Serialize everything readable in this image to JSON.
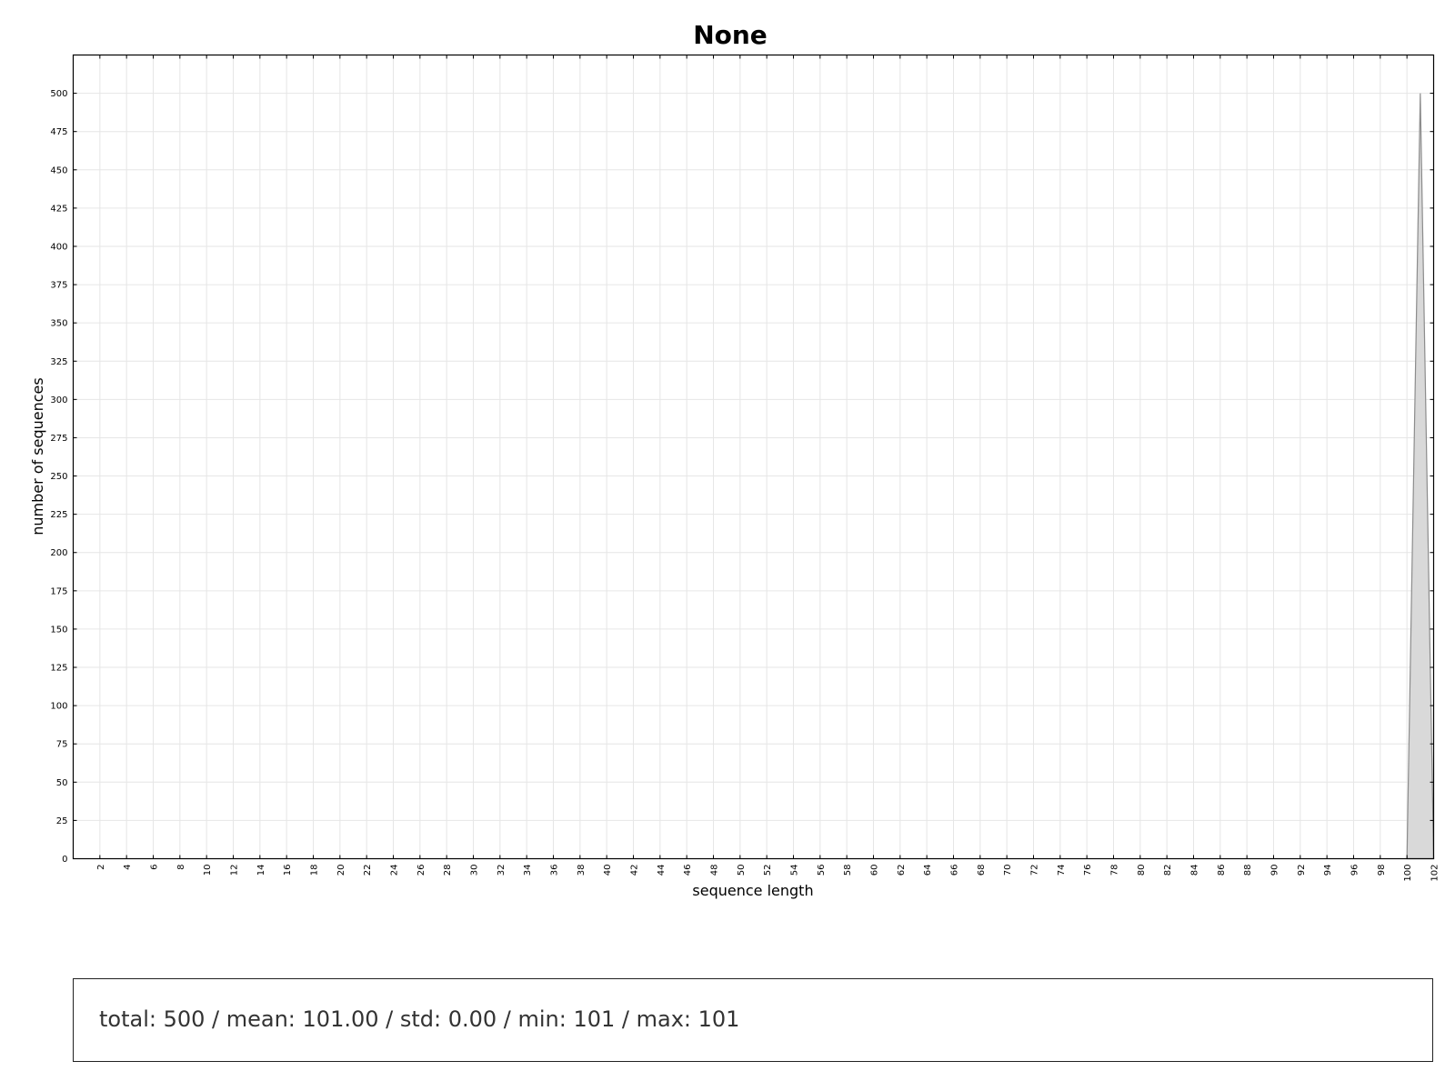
{
  "chart_data": {
    "type": "area",
    "title": "None",
    "xlabel": "sequence length",
    "ylabel": "number of sequences",
    "xlim": [
      0,
      102
    ],
    "ylim": [
      0,
      525
    ],
    "xticks": [
      2,
      4,
      6,
      8,
      10,
      12,
      14,
      16,
      18,
      20,
      22,
      24,
      26,
      28,
      30,
      32,
      34,
      36,
      38,
      40,
      42,
      44,
      46,
      48,
      50,
      52,
      54,
      56,
      58,
      60,
      62,
      64,
      66,
      68,
      70,
      72,
      74,
      76,
      78,
      80,
      82,
      84,
      86,
      88,
      90,
      92,
      94,
      96,
      98,
      100,
      102
    ],
    "yticks": [
      0,
      25,
      50,
      75,
      100,
      125,
      150,
      175,
      200,
      225,
      250,
      275,
      300,
      325,
      350,
      375,
      400,
      425,
      450,
      475,
      500
    ],
    "grid": true,
    "series": [
      {
        "x": [
          100,
          101,
          102
        ],
        "y": [
          0,
          500,
          0
        ]
      }
    ],
    "colors": {
      "fill": "#d9d9d9",
      "line": "#8c8c8c",
      "grid": "#e6e6e6",
      "axis": "#000000"
    }
  },
  "stats": {
    "text": "total: 500 / mean: 101.00 / std: 0.00 / min: 101 / max: 101"
  }
}
